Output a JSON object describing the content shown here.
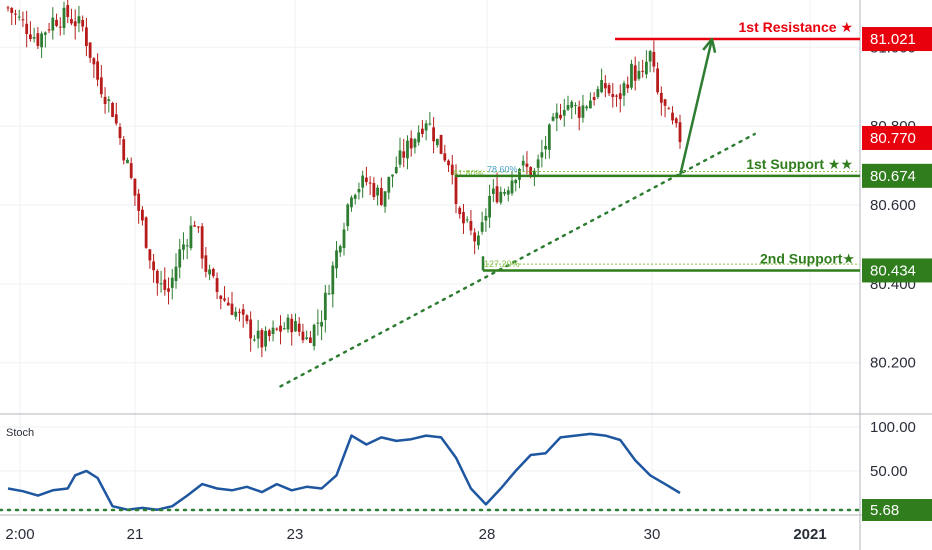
{
  "chart_data": [
    {
      "type": "candlestick",
      "title": "",
      "y_ticks": [
        "80.200",
        "80.400",
        "80.600",
        "80.800",
        "81.000"
      ],
      "ylim": [
        80.08,
        81.12
      ],
      "x_ticks": [
        "2:00",
        "21",
        "23",
        "28",
        "30",
        "2021"
      ],
      "grid": true,
      "levels": [
        {
          "name": "1st Resistance ★",
          "value": 81.021,
          "badge": "81.021",
          "color": "#e8000d"
        },
        {
          "name": "1st Support ★★",
          "value": 80.674,
          "badge": "80.674",
          "color": "#2f7d1c"
        },
        {
          "name": "2nd Support★",
          "value": 80.434,
          "badge": "80.434",
          "color": "#2f7d1c"
        }
      ],
      "current_price": {
        "value": 80.77,
        "badge": "80.770",
        "color": "#e8000d"
      },
      "fib_labels": [
        "61.80%",
        "78.60%",
        "127.20%"
      ],
      "close_path": [
        [
          0,
          81.1
        ],
        [
          4,
          81.06
        ],
        [
          8,
          81.02
        ],
        [
          12,
          81.07
        ],
        [
          16,
          81.08
        ],
        [
          20,
          81.05
        ],
        [
          24,
          80.92
        ],
        [
          28,
          80.84
        ],
        [
          32,
          80.7
        ],
        [
          36,
          80.55
        ],
        [
          40,
          80.4
        ],
        [
          43,
          80.38
        ],
        [
          46,
          80.48
        ],
        [
          50,
          80.56
        ],
        [
          53,
          80.44
        ],
        [
          56,
          80.38
        ],
        [
          60,
          80.34
        ],
        [
          64,
          80.29
        ],
        [
          68,
          80.25
        ],
        [
          72,
          80.28
        ],
        [
          76,
          80.3
        ],
        [
          80,
          80.26
        ],
        [
          84,
          80.32
        ],
        [
          88,
          80.48
        ],
        [
          92,
          80.64
        ],
        [
          96,
          80.66
        ],
        [
          100,
          80.62
        ],
        [
          104,
          80.7
        ],
        [
          108,
          80.76
        ],
        [
          112,
          80.82
        ],
        [
          116,
          80.74
        ],
        [
          119,
          80.7
        ],
        [
          120,
          80.58
        ],
        [
          123,
          80.54
        ],
        [
          126,
          80.5
        ],
        [
          129,
          80.62
        ],
        [
          133,
          80.64
        ],
        [
          137,
          80.7
        ],
        [
          141,
          80.68
        ],
        [
          145,
          80.78
        ],
        [
          149,
          80.86
        ],
        [
          153,
          80.84
        ],
        [
          157,
          80.88
        ],
        [
          160,
          80.9
        ],
        [
          163,
          80.86
        ],
        [
          167,
          80.94
        ],
        [
          170,
          80.92
        ],
        [
          171,
          80.96
        ],
        [
          172,
          80.98
        ],
        [
          174,
          80.88
        ],
        [
          176,
          80.84
        ],
        [
          178,
          80.8
        ],
        [
          180,
          80.77
        ]
      ],
      "projection": {
        "from": [
          180,
          80.674
        ],
        "to": [
          188,
          81.021
        ]
      },
      "trendline": [
        [
          73,
          80.14
        ],
        [
          200,
          80.78
        ]
      ]
    },
    {
      "type": "line",
      "title": "Stoch",
      "y_ticks": [
        "100.00",
        "50.00"
      ],
      "ylim": [
        0,
        110
      ],
      "level": {
        "value": 5.68,
        "badge": "5.68"
      },
      "series": [
        {
          "values_by_x": [
            [
              0,
              30
            ],
            [
              4,
              27
            ],
            [
              8,
              22
            ],
            [
              12,
              28
            ],
            [
              16,
              30
            ],
            [
              18,
              45
            ],
            [
              21,
              50
            ],
            [
              24,
              42
            ],
            [
              28,
              10
            ],
            [
              32,
              6
            ],
            [
              36,
              8
            ],
            [
              40,
              6
            ],
            [
              44,
              10
            ],
            [
              48,
              22
            ],
            [
              52,
              35
            ],
            [
              56,
              30
            ],
            [
              60,
              28
            ],
            [
              64,
              32
            ],
            [
              68,
              26
            ],
            [
              72,
              35
            ],
            [
              76,
              28
            ],
            [
              80,
              32
            ],
            [
              84,
              30
            ],
            [
              88,
              45
            ],
            [
              92,
              90
            ],
            [
              96,
              80
            ],
            [
              100,
              88
            ],
            [
              104,
              84
            ],
            [
              108,
              86
            ],
            [
              112,
              90
            ],
            [
              116,
              88
            ],
            [
              120,
              65
            ],
            [
              124,
              30
            ],
            [
              128,
              12
            ],
            [
              132,
              30
            ],
            [
              136,
              50
            ],
            [
              140,
              68
            ],
            [
              144,
              70
            ],
            [
              148,
              88
            ],
            [
              152,
              90
            ],
            [
              156,
              92
            ],
            [
              160,
              90
            ],
            [
              164,
              85
            ],
            [
              168,
              62
            ],
            [
              172,
              45
            ],
            [
              176,
              35
            ],
            [
              180,
              25
            ]
          ]
        }
      ]
    }
  ]
}
